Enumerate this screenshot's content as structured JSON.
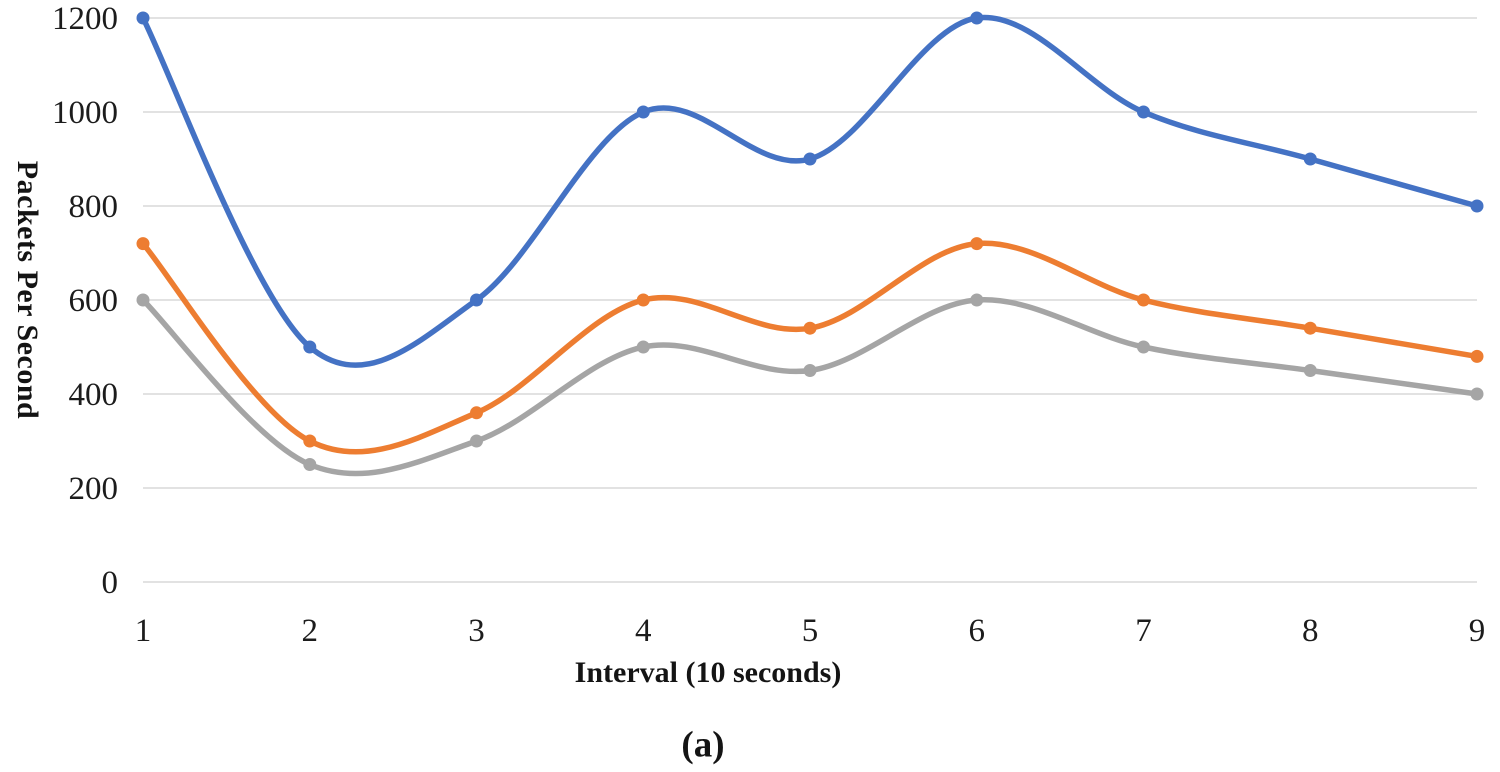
{
  "chart_data": {
    "type": "line",
    "x": [
      1,
      2,
      3,
      4,
      5,
      6,
      7,
      8,
      9
    ],
    "series": [
      {
        "name": "blue",
        "color": "#4472C4",
        "values": [
          1200,
          500,
          600,
          1000,
          900,
          1200,
          1000,
          900,
          800
        ]
      },
      {
        "name": "orange",
        "color": "#ED7D31",
        "values": [
          720,
          300,
          360,
          600,
          540,
          720,
          600,
          540,
          480
        ]
      },
      {
        "name": "gray",
        "color": "#A5A5A5",
        "values": [
          600,
          250,
          300,
          500,
          450,
          600,
          500,
          450,
          400
        ]
      }
    ],
    "title": "",
    "xlabel": "Interval (10 seconds)",
    "ylabel": "Packets Per Second",
    "y_ticks": [
      0,
      200,
      400,
      600,
      800,
      1000,
      1200
    ],
    "x_ticks": [
      "1",
      "2",
      "3",
      "4",
      "5",
      "6",
      "7",
      "8",
      "9"
    ],
    "ylim": [
      0,
      1200
    ],
    "grid": "horizontal",
    "legend": "none",
    "smooth": true,
    "markers": "circle"
  },
  "caption": "(a)",
  "colors": {
    "gridline": "#D9D9D9",
    "tick_text": "#1c1c1c",
    "background": "#FFFFFF"
  }
}
